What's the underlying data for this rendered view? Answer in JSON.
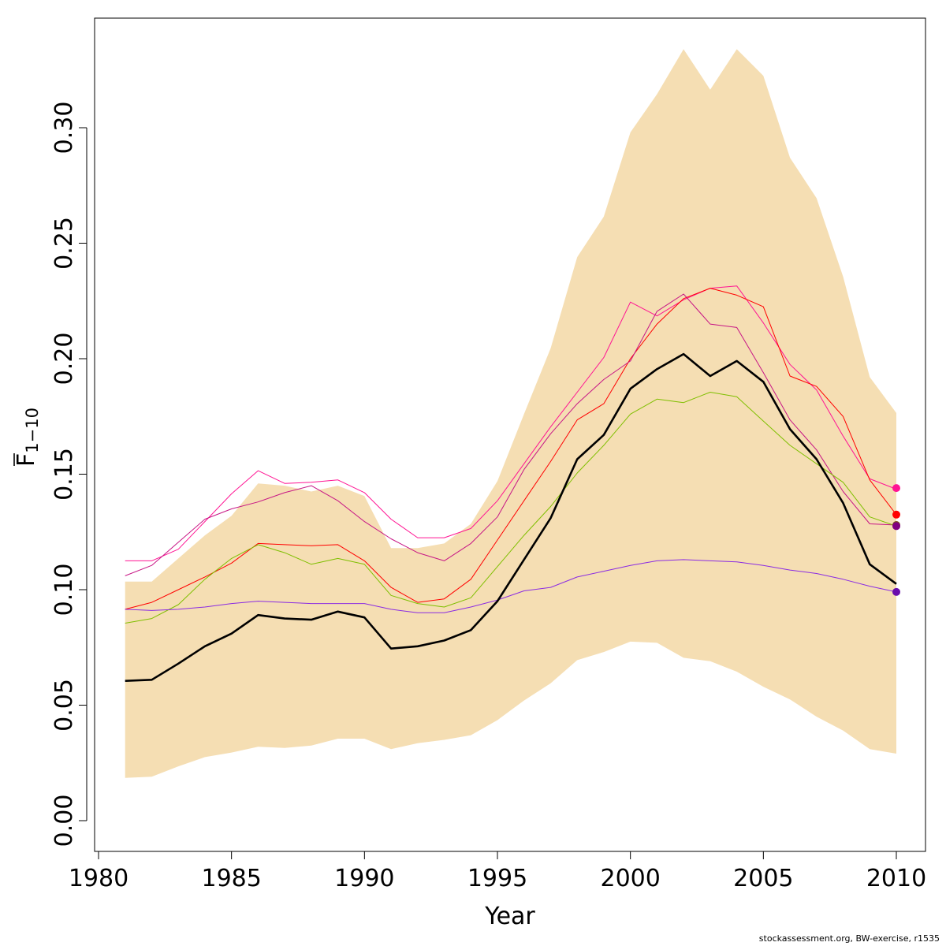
{
  "chart_data": {
    "type": "line",
    "title": "",
    "xlabel": "Year",
    "ylabel_main": "F",
    "ylabel_sub": "1−10",
    "xlim": [
      1980,
      2010
    ],
    "ylim": [
      0,
      0.33
    ],
    "xticks": [
      "1980",
      "1985",
      "1990",
      "1995",
      "2000",
      "2005",
      "2010"
    ],
    "yticks": [
      "0.00",
      "0.05",
      "0.10",
      "0.15",
      "0.20",
      "0.25",
      "0.30"
    ],
    "grid": false,
    "legend": "none",
    "x": [
      1981,
      1982,
      1983,
      1984,
      1985,
      1986,
      1987,
      1988,
      1989,
      1990,
      1991,
      1992,
      1993,
      1994,
      1995,
      1996,
      1997,
      1998,
      1999,
      2000,
      2001,
      2002,
      2003,
      2004,
      2005,
      2006,
      2007,
      2008,
      2009,
      2010
    ],
    "band": {
      "color": "#F5DEB3",
      "upper": [
        0.1035,
        0.1035,
        0.1135,
        0.1235,
        0.132,
        0.146,
        0.145,
        0.1425,
        0.145,
        0.1405,
        0.118,
        0.118,
        0.12,
        0.1285,
        0.147,
        0.176,
        0.2045,
        0.244,
        0.2615,
        0.298,
        0.3145,
        0.334,
        0.3165,
        0.334,
        0.3225,
        0.287,
        0.2695,
        0.2355,
        0.192,
        0.1765
      ],
      "lower": [
        0.0185,
        0.019,
        0.0235,
        0.0275,
        0.0295,
        0.032,
        0.0315,
        0.0325,
        0.0355,
        0.0355,
        0.031,
        0.0335,
        0.035,
        0.037,
        0.0435,
        0.052,
        0.0595,
        0.0695,
        0.073,
        0.0775,
        0.077,
        0.0705,
        0.069,
        0.0645,
        0.058,
        0.0525,
        0.045,
        0.039,
        0.031,
        0.029
      ]
    },
    "series": [
      {
        "color": "#000000",
        "width": 2.6,
        "values": [
          0.0605,
          0.061,
          0.068,
          0.0755,
          0.081,
          0.089,
          0.0875,
          0.087,
          0.0905,
          0.088,
          0.0745,
          0.0755,
          0.078,
          0.0825,
          0.095,
          0.113,
          0.131,
          0.1565,
          0.167,
          0.187,
          0.1955,
          0.202,
          0.1925,
          0.199,
          0.19,
          0.1695,
          0.1565,
          0.1375,
          0.111,
          0.1025
        ]
      },
      {
        "color": "#FF1493",
        "width": 1,
        "end_marker": true,
        "values": [
          0.1125,
          0.1125,
          0.1175,
          0.1295,
          0.1415,
          0.1515,
          0.146,
          0.1465,
          0.1475,
          0.142,
          0.1305,
          0.1225,
          0.1225,
          0.1265,
          0.1385,
          0.1545,
          0.1705,
          0.1855,
          0.2005,
          0.2245,
          0.2185,
          0.2255,
          0.2305,
          0.2315,
          0.2155,
          0.1975,
          0.1865,
          0.1665,
          0.148,
          0.1435
        ]
      },
      {
        "color": "#FF0000",
        "width": 1,
        "end_marker": true,
        "values": [
          0.0915,
          0.0945,
          0.1,
          0.1055,
          0.1115,
          0.12,
          0.1195,
          0.119,
          0.1195,
          0.1125,
          0.101,
          0.0945,
          0.096,
          0.1045,
          0.1215,
          0.1385,
          0.1555,
          0.1735,
          0.1805,
          0.2,
          0.215,
          0.226,
          0.2305,
          0.2275,
          0.2225,
          0.1925,
          0.188,
          0.175,
          0.1475,
          0.1325
        ]
      },
      {
        "color": "#C71585",
        "width": 1,
        "end_marker": true,
        "values": [
          0.106,
          0.1105,
          0.1205,
          0.1305,
          0.135,
          0.138,
          0.142,
          0.145,
          0.1385,
          0.1295,
          0.122,
          0.116,
          0.1125,
          0.12,
          0.1315,
          0.152,
          0.1675,
          0.1805,
          0.191,
          0.199,
          0.2205,
          0.228,
          0.215,
          0.2135,
          0.194,
          0.1735,
          0.1605,
          0.1425,
          0.1285,
          0.128
        ]
      },
      {
        "color": "#7FBF00",
        "width": 1,
        "end_marker": true,
        "values": [
          0.0855,
          0.0875,
          0.0935,
          0.1045,
          0.1135,
          0.1195,
          0.116,
          0.111,
          0.1135,
          0.111,
          0.0975,
          0.094,
          0.0925,
          0.0965,
          0.11,
          0.1235,
          0.136,
          0.1505,
          0.1625,
          0.176,
          0.1825,
          0.181,
          0.1855,
          0.1835,
          0.173,
          0.1625,
          0.1545,
          0.1465,
          0.1315,
          0.1275
        ]
      },
      {
        "color": "#8A2BE2",
        "width": 1,
        "end_marker": true,
        "values": [
          0.0915,
          0.091,
          0.0915,
          0.0925,
          0.094,
          0.095,
          0.0945,
          0.094,
          0.094,
          0.094,
          0.0915,
          0.09,
          0.09,
          0.0925,
          0.0955,
          0.0995,
          0.101,
          0.1055,
          0.108,
          0.1105,
          0.1125,
          0.113,
          0.1125,
          0.112,
          0.1105,
          0.1085,
          0.107,
          0.1045,
          0.1015,
          0.099
        ]
      }
    ],
    "end_markers": [
      {
        "color": "#FF1493",
        "value": 0.144
      },
      {
        "color": "#FF0000",
        "value": 0.1325
      },
      {
        "color": "#7A4B1F",
        "value": 0.128
      },
      {
        "color": "#800080",
        "value": 0.1275
      },
      {
        "color": "#6A0DAD",
        "value": 0.099
      }
    ]
  },
  "footer": "stockassessment.org, BW-exercise, r1535"
}
